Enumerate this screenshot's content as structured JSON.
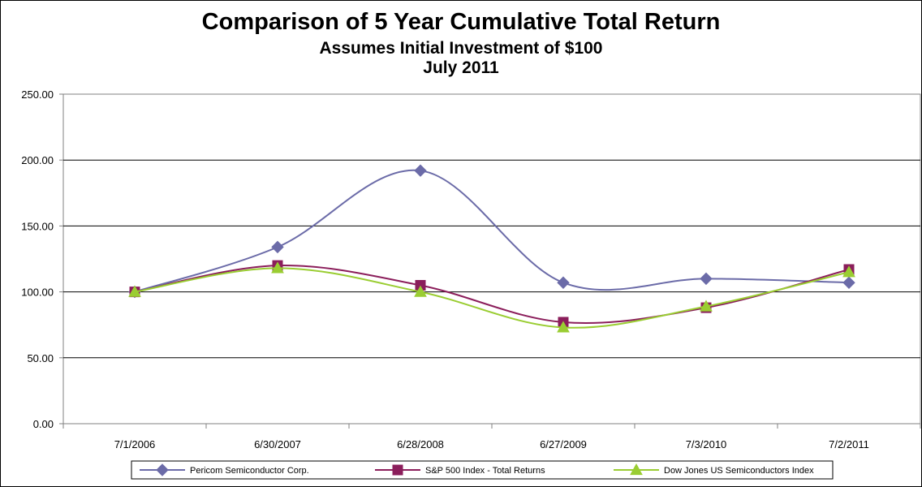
{
  "chart_data": {
    "type": "line",
    "title": "Comparison of 5 Year Cumulative Total Return",
    "subtitle": "Assumes Initial Investment of $100",
    "subtitle2": "July 2011",
    "xlabel": "",
    "ylabel": "",
    "categories": [
      "7/1/2006",
      "6/30/2007",
      "6/28/2008",
      "6/27/2009",
      "7/3/2010",
      "7/2/2011"
    ],
    "y_ticks": [
      "0.00",
      "50.00",
      "100.00",
      "150.00",
      "200.00",
      "250.00"
    ],
    "ylim": [
      0,
      250
    ],
    "grid": "horizontal",
    "legend_position": "bottom",
    "series": [
      {
        "name": "Pericom Semiconductor Corp.",
        "marker": "diamond",
        "color": "#6B6BA8",
        "values": [
          100,
          134,
          192,
          107,
          110,
          107
        ]
      },
      {
        "name": "S&P 500 Index - Total Returns",
        "marker": "square",
        "color": "#8B1E5B",
        "values": [
          100,
          120,
          105,
          77,
          88,
          117
        ]
      },
      {
        "name": "Dow Jones US Semiconductors Index",
        "marker": "triangle",
        "color": "#9ACD32",
        "values": [
          100,
          118,
          100,
          73,
          89,
          115
        ]
      }
    ]
  }
}
